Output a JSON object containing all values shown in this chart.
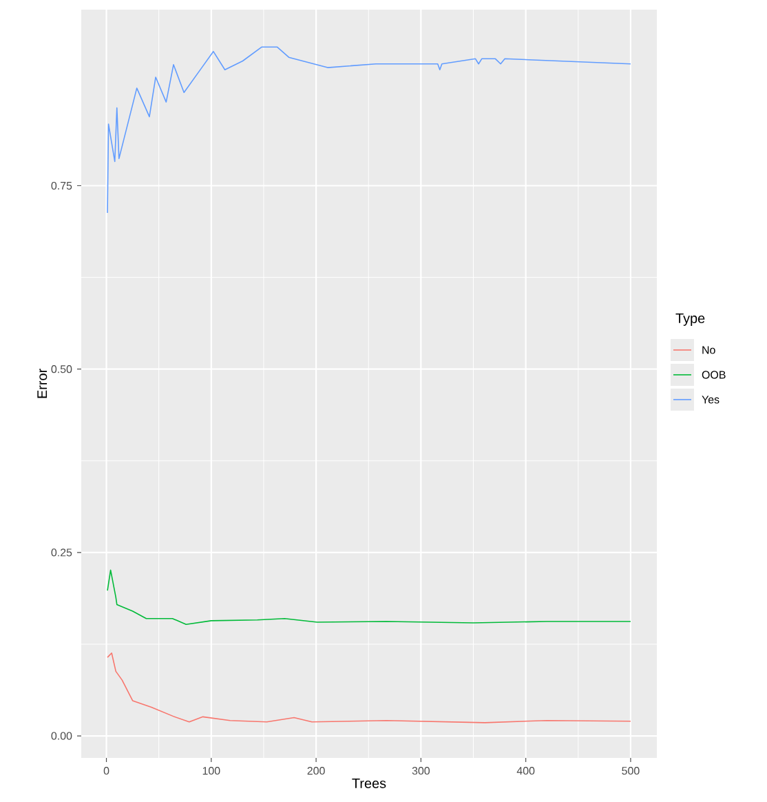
{
  "chart_data": {
    "type": "line",
    "xlabel": "Trees",
    "ylabel": "Error",
    "legend_title": "Type",
    "xlim": [
      -24,
      525
    ],
    "ylim": [
      -0.03,
      0.99
    ],
    "xticks": [
      0,
      100,
      200,
      300,
      400,
      500
    ],
    "yticks": [
      {
        "value": 0,
        "label": "0.00"
      },
      {
        "value": 0.25,
        "label": "0.25"
      },
      {
        "value": 0.5,
        "label": "0.50"
      },
      {
        "value": 0.75,
        "label": "0.75"
      }
    ],
    "grid": true,
    "legend": "right",
    "marker": "none",
    "line_style": "solid",
    "series": [
      {
        "name": "No",
        "color": "#f8766d",
        "x": [
          1,
          5,
          9,
          15,
          25,
          43,
          65,
          79,
          92,
          118,
          153,
          179,
          196,
          267,
          361,
          420,
          500
        ],
        "values": [
          0.107,
          0.113,
          0.088,
          0.076,
          0.048,
          0.039,
          0.026,
          0.019,
          0.026,
          0.021,
          0.019,
          0.025,
          0.019,
          0.021,
          0.018,
          0.021,
          0.02
        ]
      },
      {
        "name": "OOB",
        "color": "#00ba38",
        "x": [
          1,
          4,
          9,
          10,
          25,
          38,
          63,
          76,
          100,
          144,
          170,
          201,
          267,
          350,
          420,
          500
        ],
        "values": [
          0.198,
          0.226,
          0.189,
          0.179,
          0.17,
          0.16,
          0.16,
          0.152,
          0.157,
          0.158,
          0.16,
          0.155,
          0.156,
          0.154,
          0.156,
          0.156
        ]
      },
      {
        "name": "Yes",
        "color": "#619cff",
        "x": [
          1,
          2,
          8,
          10,
          12,
          29,
          41,
          47,
          57,
          64,
          74,
          91,
          102,
          113,
          130,
          148,
          163,
          174,
          211,
          257,
          300,
          316,
          318,
          320,
          352,
          355,
          358,
          371,
          376,
          380,
          500
        ],
        "values": [
          0.713,
          0.834,
          0.783,
          0.856,
          0.787,
          0.883,
          0.844,
          0.898,
          0.864,
          0.915,
          0.877,
          0.911,
          0.933,
          0.908,
          0.92,
          0.939,
          0.939,
          0.925,
          0.911,
          0.916,
          0.916,
          0.916,
          0.908,
          0.916,
          0.923,
          0.916,
          0.923,
          0.923,
          0.916,
          0.923,
          0.916
        ]
      }
    ]
  }
}
